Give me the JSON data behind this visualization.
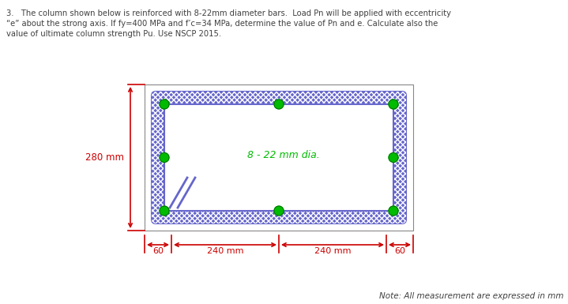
{
  "title_line1": "3.   The column shown below is reinforced with 8-22mm diameter bars.  Load Pn will be applied with eccentricity",
  "title_line2": "“e” about the strong axis. If fy=400 MPa and f’c=34 MPa, determine the value of Pn and e. Calculate also the",
  "title_line3": "value of ultimate column strength Pu. Use NSCP 2015.",
  "note_text": "Note: All measurement are expressed in mm",
  "bar_label": "8 - 22 mm dia.",
  "dim_left": "280 mm",
  "dim_d1": "60",
  "dim_d2": "240 mm",
  "dim_d3": "240 mm",
  "dim_d4": "60",
  "background": "#ffffff",
  "rebar_color": "#00bb00",
  "stirrup_color": "#6666cc",
  "dim_color": "#cc0000",
  "text_color": "#404040",
  "bar_text_color": "#00bb00",
  "outer_box_color": "#888888"
}
